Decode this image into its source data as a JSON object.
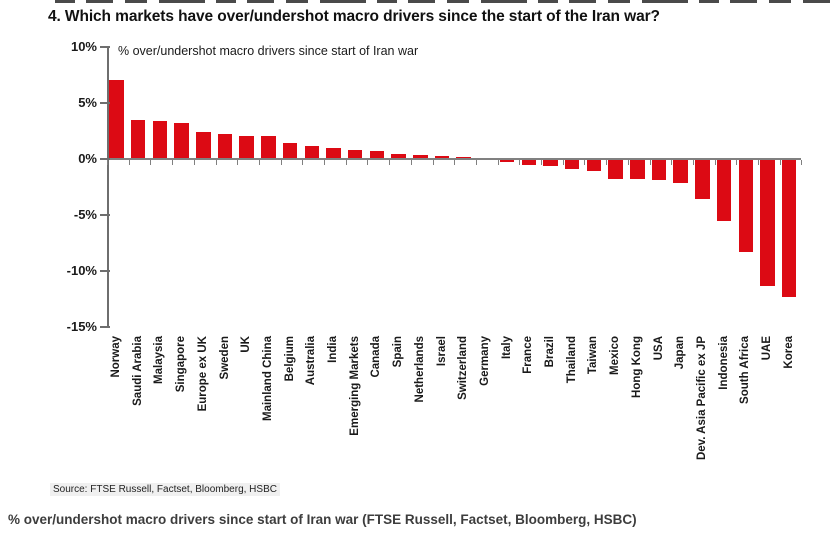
{
  "page": {
    "title": "4. Which markets have over/undershot macro drivers since the start of the Iran war?",
    "source": "Source: FTSE Russell, Factset, Bloomberg, HSBC",
    "caption": "% over/undershot macro drivers since start of Iran war (FTSE Russell, Factset, Bloomberg, HSBC)"
  },
  "chart_data": {
    "type": "bar",
    "title": "% over/undershot macro drivers since start of Iran war",
    "xlabel": "",
    "ylabel": "",
    "ylim": [
      -15,
      10
    ],
    "grid": false,
    "legend": false,
    "bar_color": "#DC0A14",
    "axis_color": "#808080",
    "ytick_labels": [
      "10%",
      "5%",
      "0%",
      "-5%",
      "-10%",
      "-15%"
    ],
    "ytick_values": [
      10,
      5,
      0,
      -5,
      -10,
      -15
    ],
    "categories": [
      "Norway",
      "Saudi Arabia",
      "Malaysia",
      "Singapore",
      "Europe ex UK",
      "Sweden",
      "UK",
      "Mainland China",
      "Belgium",
      "Australia",
      "India",
      "Emerging Markets",
      "Canada",
      "Spain",
      "Netherlands",
      "Israel",
      "Switzerland",
      "Germany",
      "Italy",
      "France",
      "Brazil",
      "Thailand",
      "Taiwan",
      "Mexico",
      "Hong Kong",
      "USA",
      "Japan",
      "Dev. Asia Pacific ex JP",
      "Indonesia",
      "South Africa",
      "UAE",
      "Korea"
    ],
    "values": [
      7.0,
      3.4,
      3.3,
      3.1,
      2.3,
      2.1,
      2.0,
      2.0,
      1.3,
      1.1,
      0.9,
      0.7,
      0.6,
      0.4,
      0.3,
      0.2,
      0.1,
      -0.1,
      -0.3,
      -0.5,
      -0.6,
      -0.9,
      -1.1,
      -1.8,
      -1.8,
      -1.9,
      -2.1,
      -3.6,
      -5.5,
      -8.3,
      -11.3,
      -12.3
    ]
  }
}
